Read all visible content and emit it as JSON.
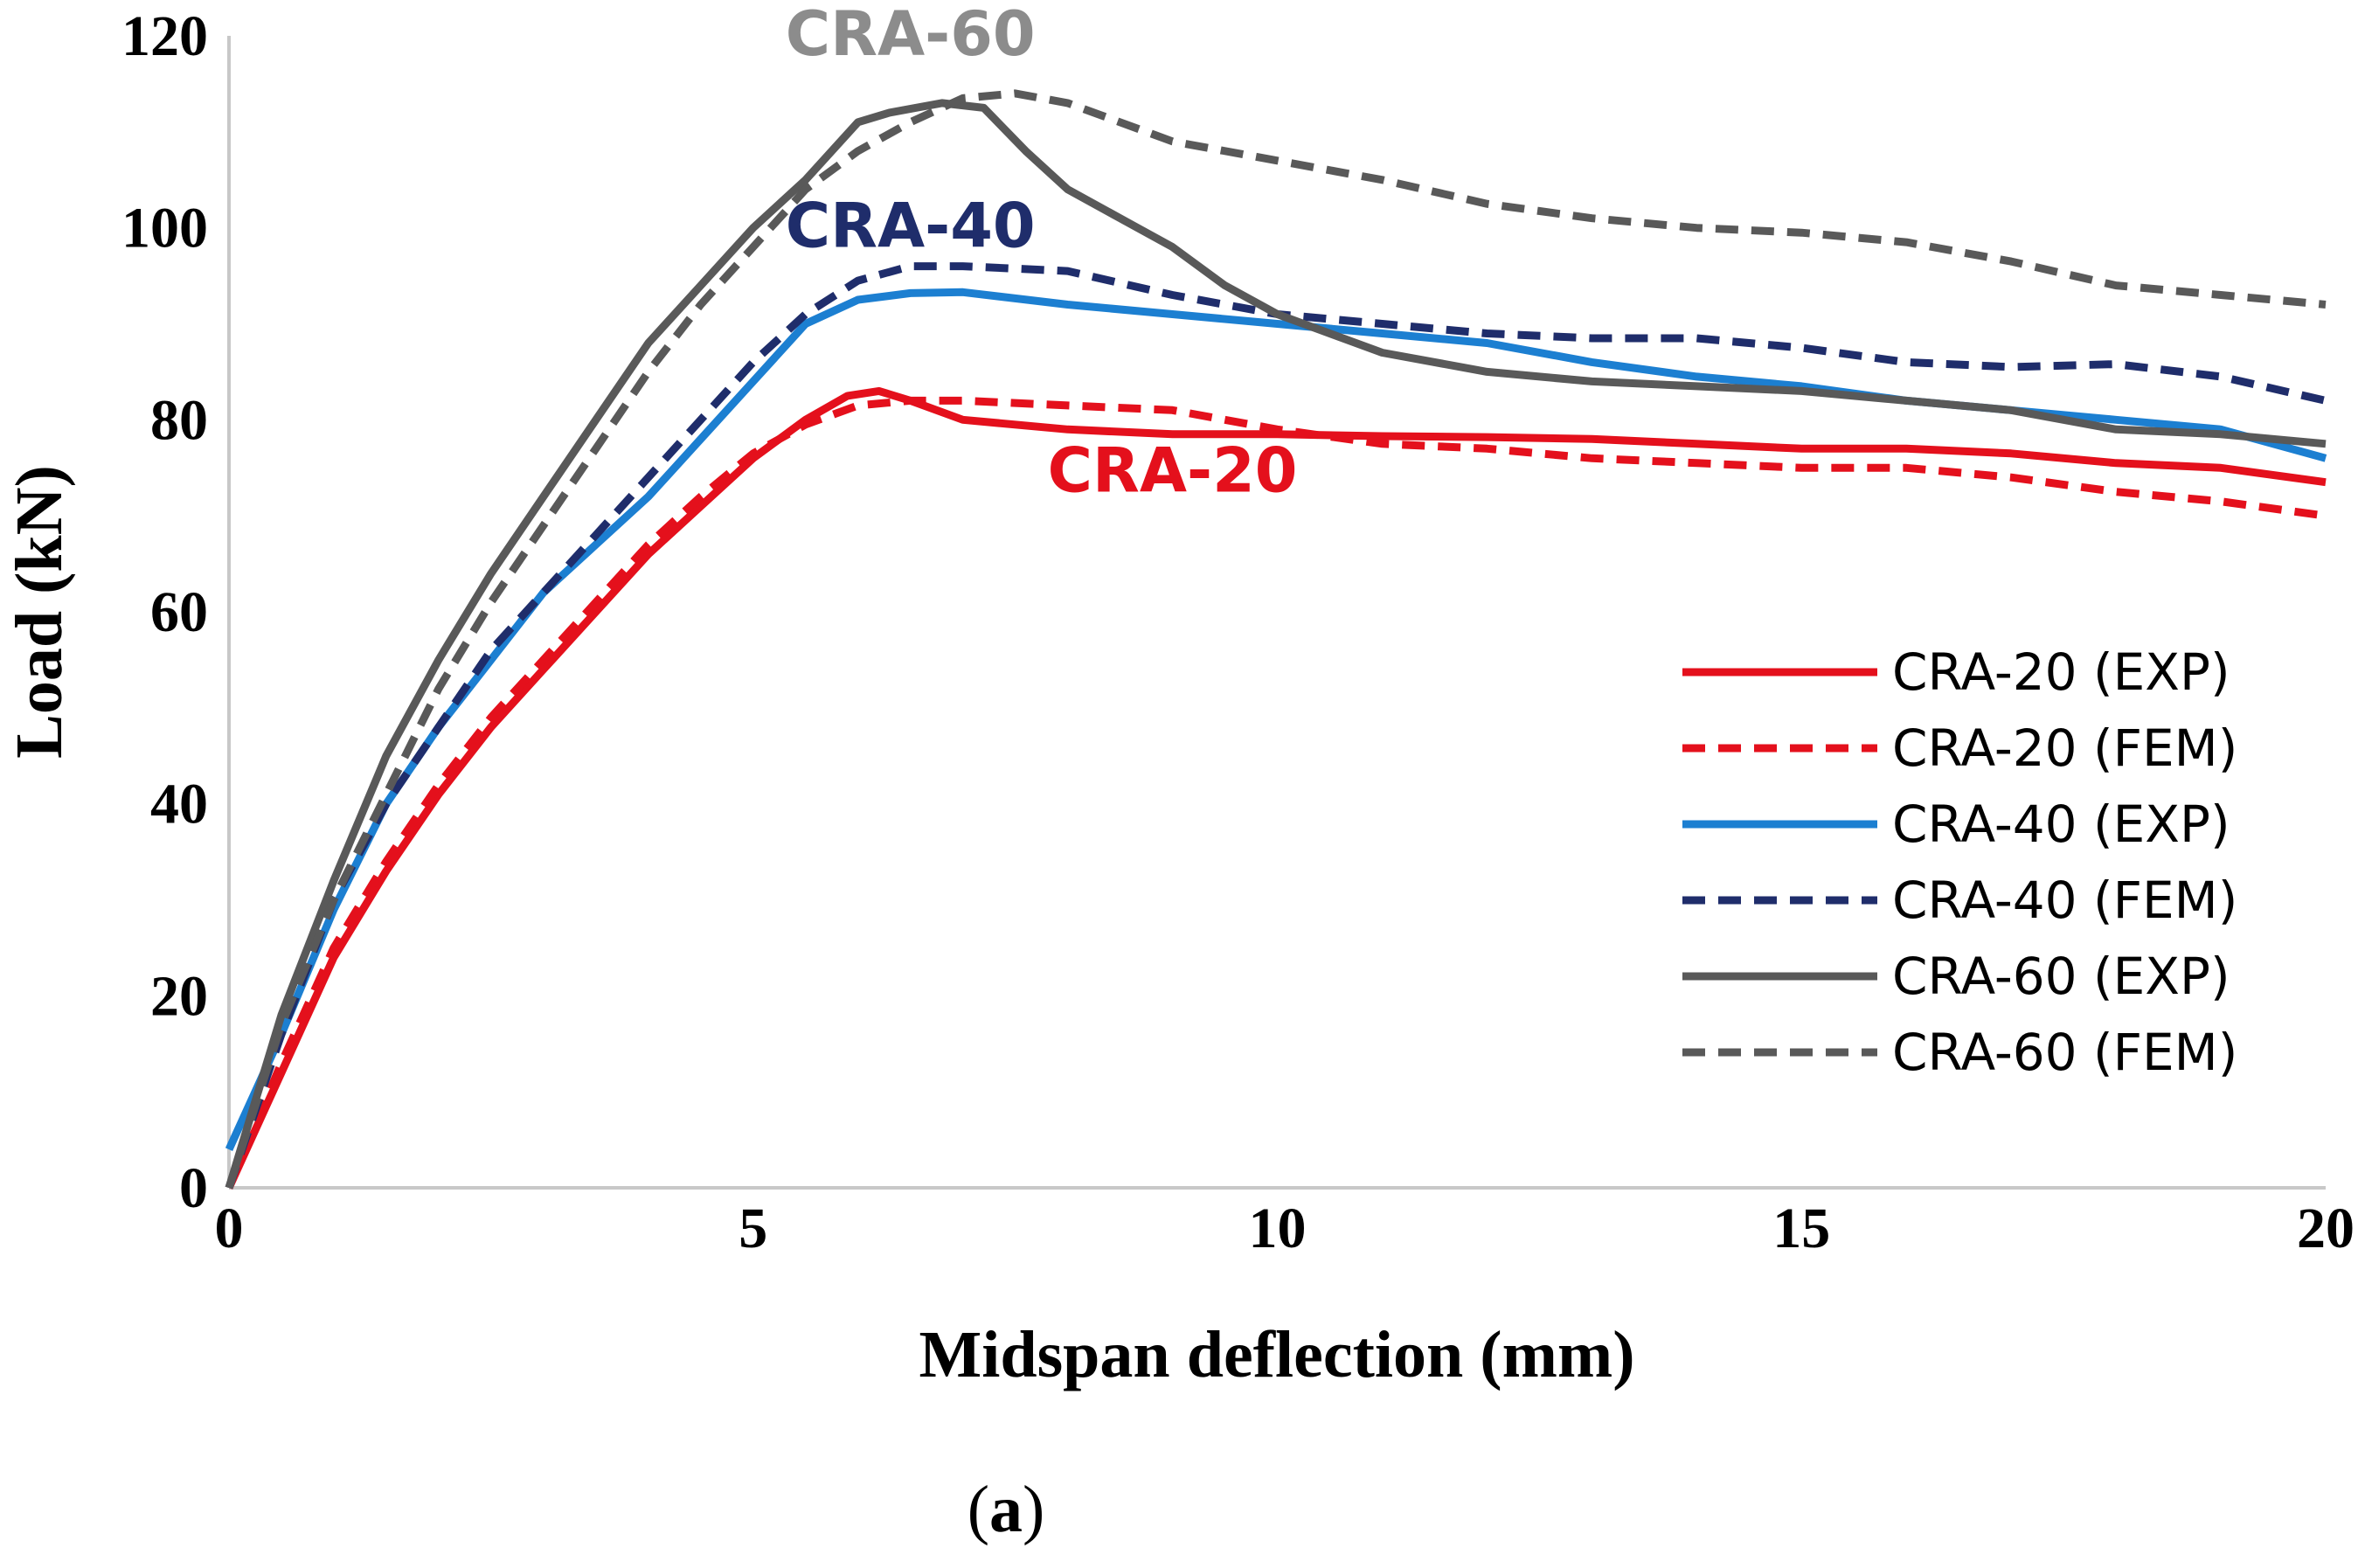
{
  "chart_data": {
    "type": "line",
    "title": "",
    "xlabel": "Midspan deflection (mm)",
    "ylabel": "Load (kN)",
    "xlim": [
      0,
      20
    ],
    "ylim": [
      0,
      120
    ],
    "xticks": [
      0,
      5,
      10,
      15,
      20
    ],
    "yticks": [
      0,
      20,
      40,
      60,
      80,
      100,
      120
    ],
    "grid": false,
    "legend_position": "right",
    "caption": "a",
    "annotations": [
      {
        "text": "CRA-60",
        "x": 6.5,
        "y": 118,
        "color": "#8c8c8c"
      },
      {
        "text": "CRA-40",
        "x": 6.5,
        "y": 98,
        "color": "#1f2d6b"
      },
      {
        "text": "CRA-20",
        "x": 9.0,
        "y": 72.5,
        "color": "#e4101c"
      }
    ],
    "series": [
      {
        "name": "CRA-20 (EXP)",
        "color": "#e4101c",
        "dash": "solid",
        "x": [
          0,
          0.5,
          1,
          1.5,
          2,
          2.5,
          3,
          3.5,
          4,
          4.5,
          5,
          5.5,
          5.9,
          6.2,
          6.5,
          7,
          8,
          9,
          10,
          11,
          12,
          13,
          14,
          15,
          16,
          17,
          18,
          19,
          20
        ],
        "y": [
          0,
          12,
          24,
          33,
          41,
          48,
          54,
          60,
          66,
          71,
          76,
          80,
          82.5,
          83,
          82,
          80,
          79,
          78.5,
          78.5,
          78.3,
          78.2,
          78,
          77.5,
          77,
          77,
          76.5,
          75.5,
          75,
          73.5
        ]
      },
      {
        "name": "CRA-20 (FEM)",
        "color": "#e4101c",
        "dash": "dashed",
        "x": [
          0,
          0.5,
          1,
          1.5,
          2,
          2.5,
          3,
          3.5,
          4,
          4.5,
          5,
          5.5,
          6,
          6.5,
          7,
          8,
          9,
          10,
          11,
          12,
          13,
          14,
          15,
          16,
          17,
          18,
          19,
          20
        ],
        "y": [
          0,
          13,
          25,
          34,
          42,
          49,
          55,
          61,
          67,
          72,
          76.5,
          79.5,
          81.5,
          82,
          82,
          81.5,
          81,
          79,
          77.5,
          77,
          76,
          75.5,
          75,
          75,
          74,
          72.5,
          71.5,
          70
        ]
      },
      {
        "name": "CRA-40 (EXP)",
        "color": "#1c7fd1",
        "dash": "solid",
        "x": [
          0,
          0.5,
          1,
          1.5,
          2,
          2.5,
          3,
          3.5,
          4,
          4.5,
          5,
          5.5,
          6,
          6.5,
          7,
          8,
          9,
          10,
          11,
          12,
          13,
          14,
          15,
          16,
          17,
          18,
          19,
          20
        ],
        "y": [
          4,
          16,
          29,
          40,
          48,
          55,
          62,
          67,
          72,
          78,
          84,
          90,
          92.5,
          93.2,
          93.3,
          92,
          91,
          90,
          89,
          88,
          86,
          84.5,
          83.5,
          82,
          81,
          80,
          79,
          76
        ]
      },
      {
        "name": "CRA-40 (FEM)",
        "color": "#1f2d6b",
        "dash": "dashed",
        "x": [
          0,
          0.5,
          1,
          1.5,
          2,
          2.5,
          3,
          3.5,
          4,
          4.5,
          5,
          5.5,
          6,
          6.5,
          7,
          8,
          9,
          10,
          11,
          12,
          13,
          14,
          15,
          16,
          17,
          18,
          19,
          20
        ],
        "y": [
          0,
          16,
          30,
          40,
          48,
          56,
          62,
          68,
          74,
          80,
          86,
          91,
          94.5,
          96,
          96,
          95.5,
          93,
          91,
          90,
          89,
          88.5,
          88.5,
          87.5,
          86,
          85.5,
          85.8,
          84.5,
          82
        ]
      },
      {
        "name": "CRA-60 (EXP)",
        "color": "#595959",
        "dash": "solid",
        "x": [
          0,
          0.5,
          1,
          1.5,
          2,
          2.5,
          3,
          3.5,
          4,
          4.5,
          5,
          5.5,
          6,
          6.3,
          6.8,
          7.2,
          7.6,
          8,
          8.5,
          9,
          9.5,
          10,
          11,
          12,
          13,
          14,
          15,
          16,
          17,
          18,
          19,
          20
        ],
        "y": [
          0,
          18,
          32,
          45,
          55,
          64,
          72,
          80,
          88,
          94,
          100,
          105,
          111,
          112,
          113,
          112.5,
          108,
          104,
          101,
          98,
          94,
          91,
          87,
          85,
          84,
          83.5,
          83,
          82,
          81,
          79,
          78.5,
          77.5
        ]
      },
      {
        "name": "CRA-60 (FEM)",
        "color": "#595959",
        "dash": "dashed",
        "x": [
          0,
          0.5,
          1,
          1.5,
          2,
          2.5,
          3,
          3.5,
          4,
          4.5,
          5,
          5.5,
          6,
          6.5,
          7,
          7.5,
          8,
          9,
          10,
          11,
          12,
          13,
          14,
          15,
          16,
          17,
          18,
          19,
          20
        ],
        "y": [
          0,
          17,
          30,
          41,
          52,
          61,
          69,
          77,
          85,
          92,
          98,
          104,
          108,
          111,
          113.5,
          114,
          113,
          109,
          107,
          105,
          102.5,
          101,
          100,
          99.5,
          98.5,
          96.5,
          94,
          93,
          92
        ]
      }
    ]
  }
}
